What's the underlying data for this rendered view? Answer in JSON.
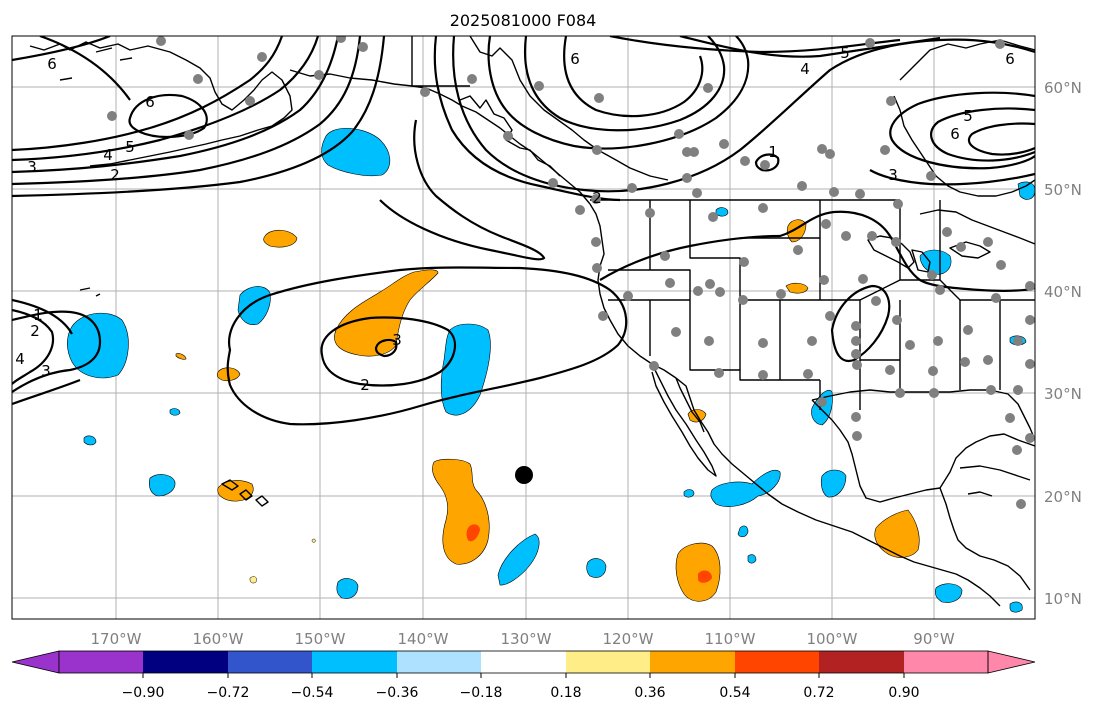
{
  "title": "2025081000 F084",
  "map": {
    "lon_labels": [
      "170°W",
      "160°W",
      "150°W",
      "140°W",
      "130°W",
      "120°W",
      "110°W",
      "100°W",
      "90°W"
    ],
    "lat_labels": [
      "60°N",
      "50°N",
      "40°N",
      "30°N",
      "20°N",
      "10°N"
    ],
    "contour_labels": [
      "6",
      "6",
      "6",
      "5",
      "4",
      "3",
      "2",
      "6",
      "5",
      "4",
      "5",
      "6",
      "3",
      "1",
      "2",
      "3",
      "2",
      "1",
      "2",
      "3",
      "4"
    ],
    "colors": {
      "land": "#000000",
      "contour": "#000000",
      "grid": "#b0b0b0",
      "station_dot": "#808080",
      "marker": "#000000",
      "negative_fill": "#00bfff",
      "positive_fill": "#ffa500",
      "strong_positive_fill": "#ff4500"
    }
  },
  "colorbar": {
    "ticks": [
      "−0.90",
      "−0.72",
      "−0.54",
      "−0.36",
      "−0.18",
      "0.18",
      "0.36",
      "0.54",
      "0.72",
      "0.90"
    ],
    "colors": [
      "#9933cc",
      "#000080",
      "#3355cc",
      "#00bfff",
      "#aee0ff",
      "#ffffff",
      "#ffee88",
      "#ffa500",
      "#ff4500",
      "#b22222",
      "#ff88aa"
    ]
  }
}
